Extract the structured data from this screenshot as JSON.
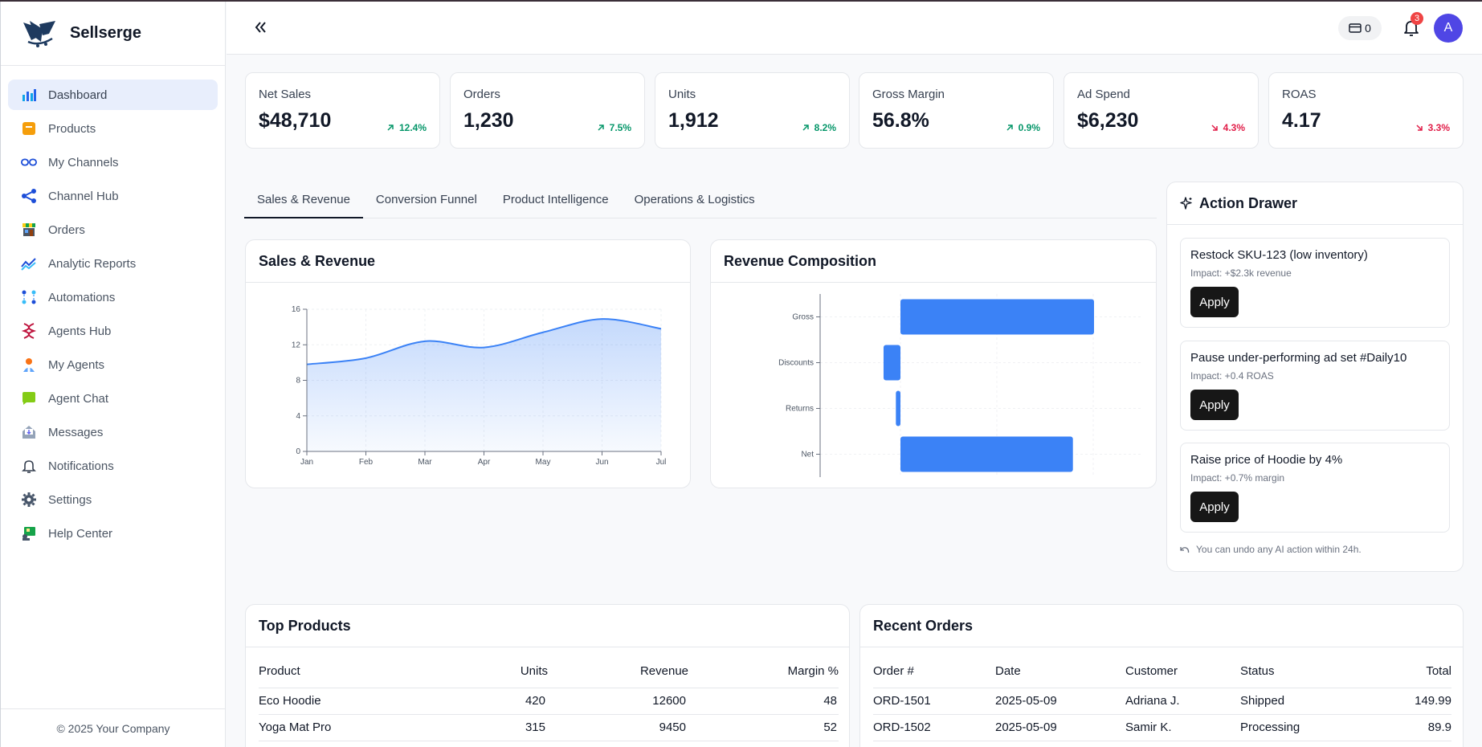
{
  "brand": {
    "name": "Sellserge"
  },
  "sidebar": {
    "items": [
      {
        "label": "Dashboard",
        "icon": "dashboard-icon",
        "active": true
      },
      {
        "label": "Products",
        "icon": "products-icon"
      },
      {
        "label": "My Channels",
        "icon": "channels-icon"
      },
      {
        "label": "Channel Hub",
        "icon": "share-icon"
      },
      {
        "label": "Orders",
        "icon": "store-icon"
      },
      {
        "label": "Analytic Reports",
        "icon": "trend-icon"
      },
      {
        "label": "Automations",
        "icon": "automation-icon"
      },
      {
        "label": "Agents Hub",
        "icon": "dna-icon"
      },
      {
        "label": "My Agents",
        "icon": "agent-icon"
      },
      {
        "label": "Agent Chat",
        "icon": "chat-icon"
      },
      {
        "label": "Messages",
        "icon": "inbox-icon"
      },
      {
        "label": "Notifications",
        "icon": "bell-icon"
      },
      {
        "label": "Settings",
        "icon": "gear-icon"
      },
      {
        "label": "Help Center",
        "icon": "help-icon"
      }
    ],
    "footer": "© 2025 Your Company"
  },
  "header": {
    "credits": "0",
    "notifications_count": "3",
    "avatar_initial": "A"
  },
  "kpis": [
    {
      "label": "Net Sales",
      "value": "$48,710",
      "delta": "12.4%",
      "trend": "up"
    },
    {
      "label": "Orders",
      "value": "1,230",
      "delta": "7.5%",
      "trend": "up"
    },
    {
      "label": "Units",
      "value": "1,912",
      "delta": "8.2%",
      "trend": "up"
    },
    {
      "label": "Gross Margin",
      "value": "56.8%",
      "delta": "0.9%",
      "trend": "up"
    },
    {
      "label": "Ad Spend",
      "value": "$6,230",
      "delta": "4.3%",
      "trend": "down"
    },
    {
      "label": "ROAS",
      "value": "4.17",
      "delta": "3.3%",
      "trend": "down"
    }
  ],
  "tabs": [
    "Sales & Revenue",
    "Conversion Funnel",
    "Product Intelligence",
    "Operations & Logistics"
  ],
  "sales_chart": {
    "title": "Sales & Revenue"
  },
  "composition_chart": {
    "title": "Revenue Composition"
  },
  "chart_data": [
    {
      "type": "area",
      "title": "Sales & Revenue",
      "categories": [
        "Jan",
        "Feb",
        "Mar",
        "Apr",
        "May",
        "Jun",
        "Jul"
      ],
      "values": [
        9.8,
        10.5,
        12.4,
        11.7,
        13.4,
        14.9,
        13.8
      ],
      "ylim": [
        0,
        16
      ],
      "yticks": [
        0,
        4,
        8,
        12,
        16
      ],
      "grid": true,
      "color": "#3b82f6"
    },
    {
      "type": "bar",
      "orientation": "horizontal",
      "title": "Revenue Composition",
      "categories": [
        "Gross",
        "Discounts",
        "Returns",
        "Net"
      ],
      "values": [
        55000,
        -4800,
        -1300,
        49000
      ],
      "grid": true,
      "color": "#3b82f6"
    }
  ],
  "action_drawer": {
    "title": "Action Drawer",
    "actions": [
      {
        "title": "Restock SKU-123 (low inventory)",
        "impact": "Impact: +$2.3k revenue",
        "button": "Apply"
      },
      {
        "title": "Pause under-performing ad set #Daily10",
        "impact": "Impact: +0.4 ROAS",
        "button": "Apply"
      },
      {
        "title": "Raise price of Hoodie by 4%",
        "impact": "Impact: +0.7% margin",
        "button": "Apply"
      }
    ],
    "undo_note": "You can undo any AI action within 24h."
  },
  "top_products": {
    "title": "Top Products",
    "columns": [
      "Product",
      "Units",
      "Revenue",
      "Margin %"
    ],
    "rows": [
      [
        "Eco Hoodie",
        "420",
        "12600",
        "48"
      ],
      [
        "Yoga Mat Pro",
        "315",
        "9450",
        "52"
      ]
    ]
  },
  "recent_orders": {
    "title": "Recent Orders",
    "columns": [
      "Order #",
      "Date",
      "Customer",
      "Status",
      "Total"
    ],
    "rows": [
      [
        "ORD-1501",
        "2025-05-09",
        "Adriana J.",
        "Shipped",
        "149.99"
      ],
      [
        "ORD-1502",
        "2025-05-09",
        "Samir K.",
        "Processing",
        "89.9"
      ]
    ]
  }
}
